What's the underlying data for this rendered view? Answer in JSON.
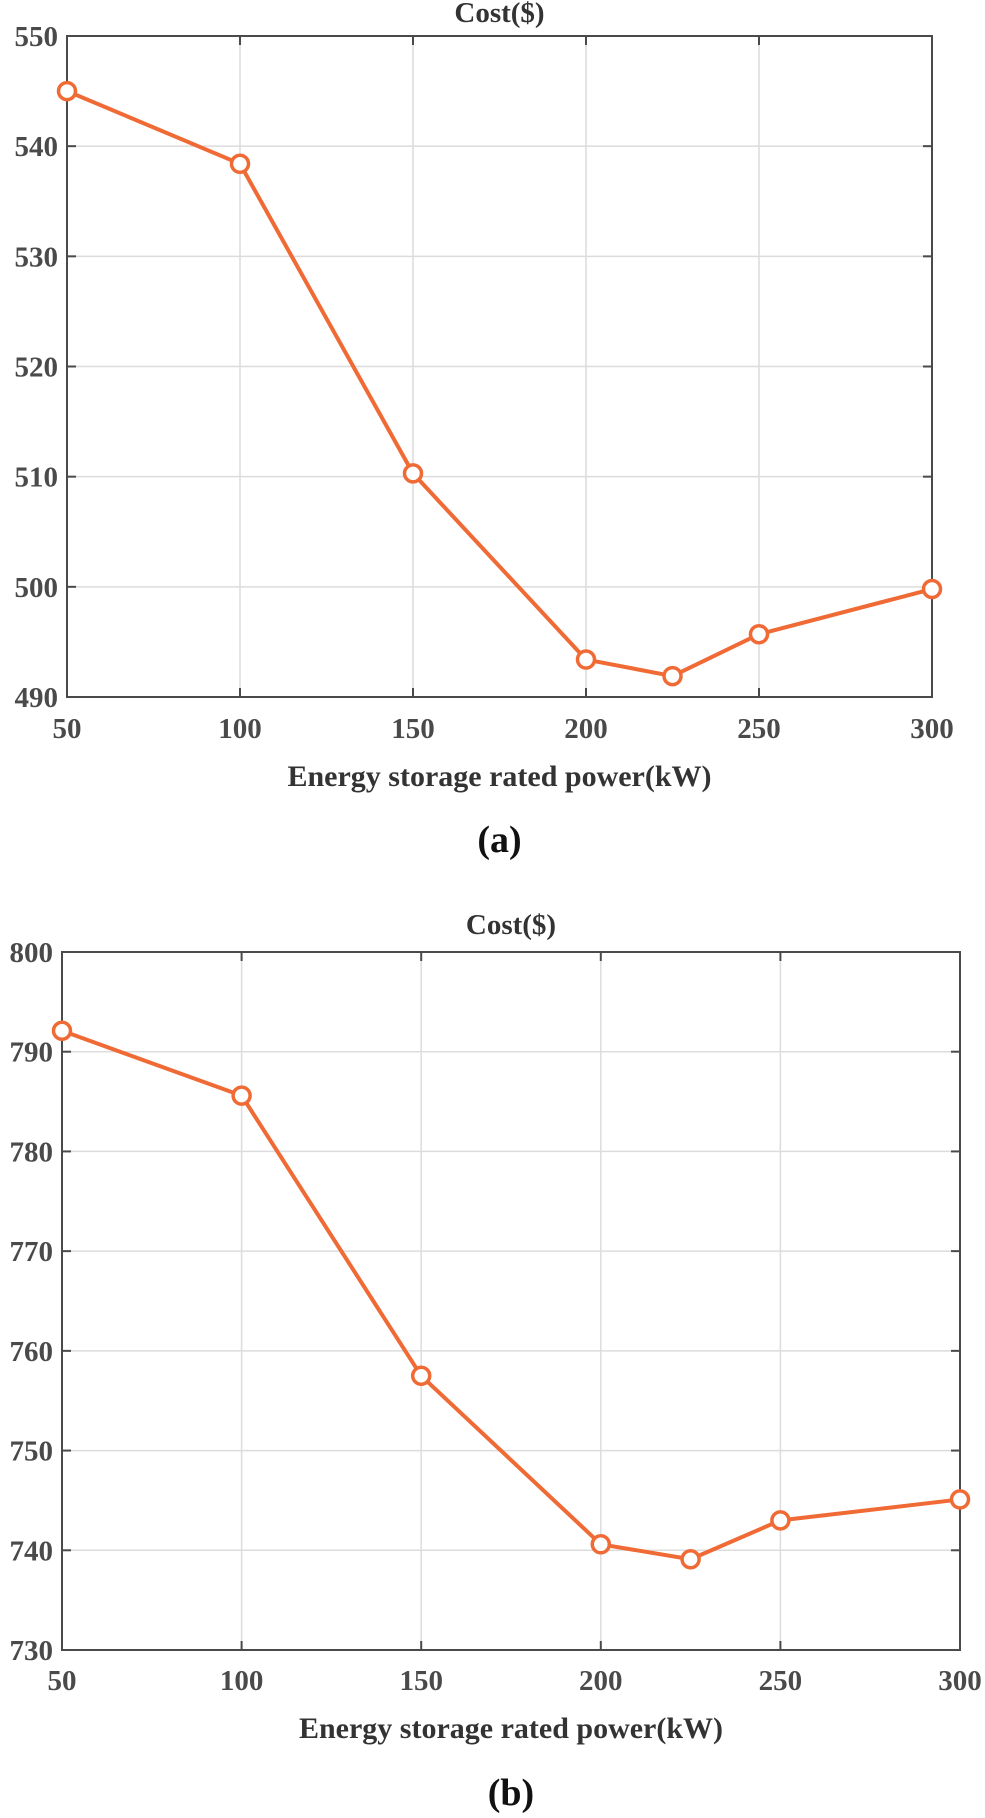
{
  "chart_data": [
    {
      "type": "line",
      "title": "Cost($)",
      "xlabel": "Energy storage rated power(kW)",
      "ylabel": "",
      "panel_label": "(a)",
      "xlim": [
        50,
        300
      ],
      "ylim": [
        490,
        550
      ],
      "xticks": [
        50,
        100,
        150,
        200,
        250,
        300
      ],
      "yticks": [
        490,
        500,
        510,
        520,
        530,
        540,
        550
      ],
      "grid": true,
      "series": [
        {
          "name": "Cost",
          "color": "#f06a35",
          "marker": "circle",
          "x": [
            50,
            100,
            150,
            200,
            225,
            250,
            300
          ],
          "y": [
            545,
            538.4,
            510.3,
            493.4,
            491.9,
            495.7,
            499.8
          ]
        }
      ]
    },
    {
      "type": "line",
      "title": "Cost($)",
      "xlabel": "Energy storage rated power(kW)",
      "ylabel": "",
      "panel_label": "(b)",
      "xlim": [
        50,
        300
      ],
      "ylim": [
        730,
        800
      ],
      "xticks": [
        50,
        100,
        150,
        200,
        250,
        300
      ],
      "yticks": [
        730,
        740,
        750,
        760,
        770,
        780,
        790,
        800
      ],
      "grid": true,
      "series": [
        {
          "name": "Cost",
          "color": "#f06a35",
          "marker": "circle",
          "x": [
            50,
            100,
            150,
            200,
            225,
            250,
            300
          ],
          "y": [
            792.1,
            785.6,
            757.5,
            740.6,
            739.1,
            743.0,
            745.1
          ]
        }
      ]
    }
  ]
}
